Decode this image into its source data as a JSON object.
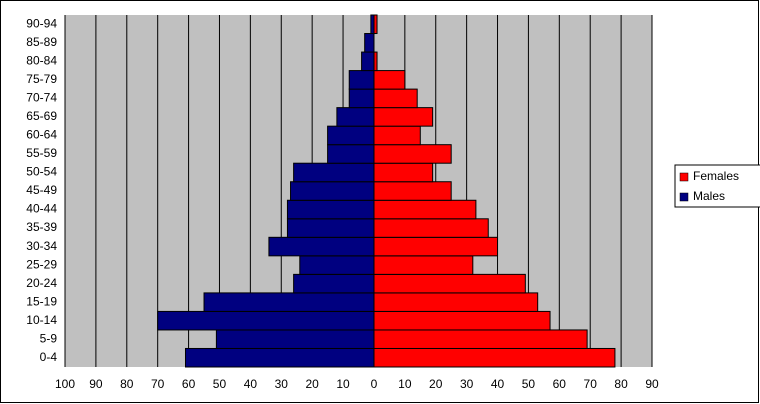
{
  "chart_data": {
    "type": "pyramid",
    "categories": [
      "0-4",
      "5-9",
      "10-14",
      "15-19",
      "20-24",
      "25-29",
      "30-34",
      "35-39",
      "40-44",
      "45-49",
      "50-54",
      "55-59",
      "60-64",
      "65-69",
      "70-74",
      "75-79",
      "80-84",
      "85-89",
      "90-94"
    ],
    "series": [
      {
        "name": "Females",
        "color": "#ff0000",
        "side": "right",
        "values": [
          78,
          69,
          57,
          53,
          49,
          32,
          40,
          37,
          33,
          25,
          19,
          25,
          15,
          19,
          14,
          10,
          1,
          0,
          1
        ]
      },
      {
        "name": "Males",
        "color": "#000080",
        "side": "left",
        "values": [
          61,
          51,
          70,
          55,
          26,
          24,
          34,
          28,
          28,
          27,
          26,
          15,
          15,
          12,
          8,
          8,
          4,
          3,
          1
        ]
      }
    ],
    "xlim": [
      -100,
      90
    ],
    "xticks": [
      {
        "value": -100,
        "label": "100"
      },
      {
        "value": -90,
        "label": "90"
      },
      {
        "value": -80,
        "label": "80"
      },
      {
        "value": -70,
        "label": "70"
      },
      {
        "value": -60,
        "label": "60"
      },
      {
        "value": -50,
        "label": "50"
      },
      {
        "value": -40,
        "label": "40"
      },
      {
        "value": -30,
        "label": "30"
      },
      {
        "value": -20,
        "label": "20"
      },
      {
        "value": -10,
        "label": "10"
      },
      0,
      10,
      20,
      30,
      40,
      50,
      60,
      70,
      80,
      90
    ],
    "grid": true,
    "legend": "right"
  }
}
